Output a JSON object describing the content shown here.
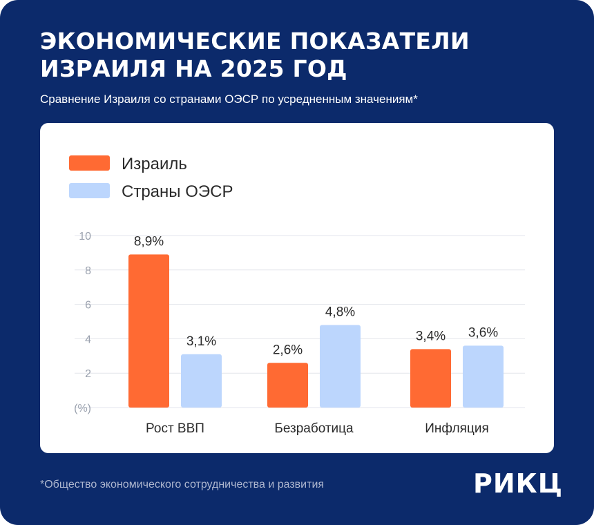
{
  "header": {
    "title": "ЭКОНОМИЧЕСКИЕ ПОКАЗАТЕЛИ\nИЗРАИЛЯ НА 2025 ГОД",
    "subtitle": "Сравнение Израиля со странами ОЭСР по усредненным значениям*"
  },
  "footer": {
    "footnote": "*Общество экономического сотрудничества и развития",
    "logo": "РИКЦ"
  },
  "colors": {
    "background": "#0c2a6b",
    "israel": "#ff6a33",
    "oecd": "#bcd6fd",
    "grid": "#e3e6ec",
    "tick": "#9aa1ae",
    "text": "#2b2b2b"
  },
  "chart_data": {
    "type": "bar",
    "categories": [
      "Рост ВВП",
      "Безработица",
      "Инфляция"
    ],
    "series": [
      {
        "name": "Израиль",
        "values": [
          8.9,
          2.6,
          3.4
        ],
        "labels": [
          "8,9%",
          "2,6%",
          "3,4%"
        ]
      },
      {
        "name": "Страны ОЭСР",
        "values": [
          3.1,
          4.8,
          3.6
        ],
        "labels": [
          "3,1%",
          "4,8%",
          "3,6%"
        ]
      }
    ],
    "ylim": [
      0,
      10
    ],
    "yticks": [
      "(%)",
      "2",
      "4",
      "6",
      "8",
      "10"
    ],
    "ytick_values": [
      0,
      2,
      4,
      6,
      8,
      10
    ],
    "grid": true,
    "legend": "top-left"
  }
}
